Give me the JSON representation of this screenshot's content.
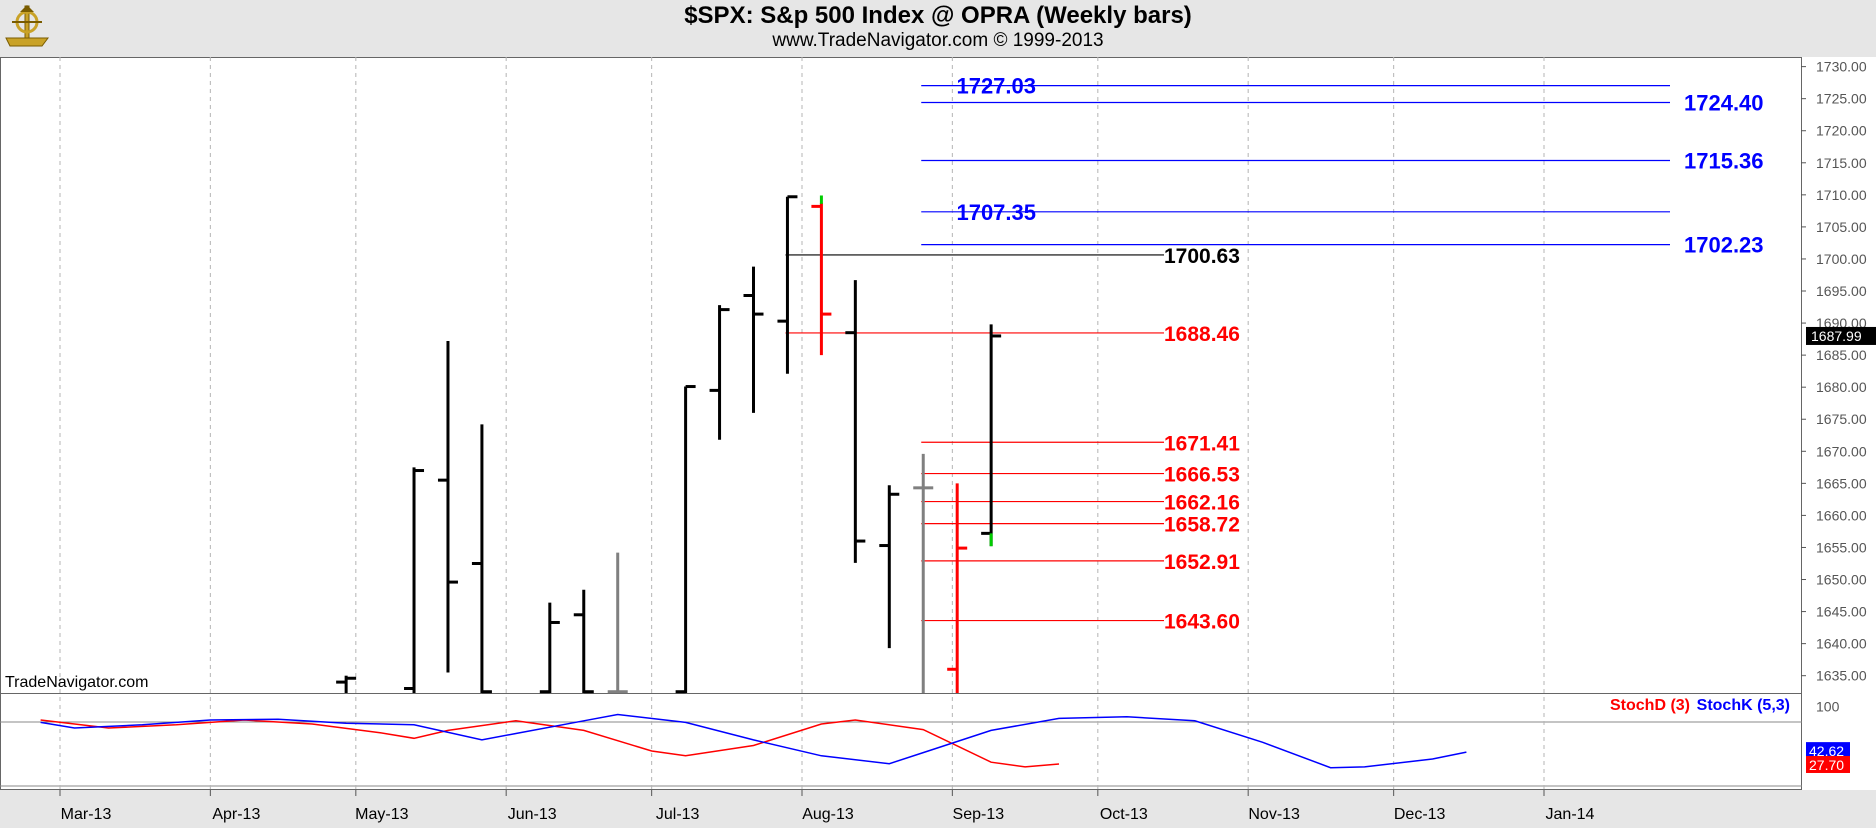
{
  "header": {
    "title": "$SPX:  S&p 500 Index @ OPRA  (Weekly bars)",
    "subtitle": "www.TradeNavigator.com © 1999-2013"
  },
  "watermark": "TradeNavigator.com",
  "colors": {
    "background": "#ffffff",
    "header_band": "#e6e6e6",
    "bar_black": "#000000",
    "bar_red": "#ff0000",
    "bar_gray": "#808080",
    "bar_green": "#00cc00",
    "level_blue": "#0000ff",
    "level_red": "#ff0000",
    "stoch_d": "#ff0000",
    "stoch_k": "#0000ff",
    "grid": "#b4b4b4"
  },
  "chart_data": [
    {
      "type": "ohlc",
      "title": "$SPX:  S&p 500 Index @ OPRA  (Weekly bars)",
      "x_tick_labels": [
        "Mar-13",
        "Apr-13",
        "May-13",
        "Jun-13",
        "Jul-13",
        "Aug-13",
        "Sep-13",
        "Oct-13",
        "Nov-13",
        "Dec-13",
        "Jan-14"
      ],
      "y_tick_labels": [
        "1730.00",
        "1725.00",
        "1720.00",
        "1715.00",
        "1710.00",
        "1705.00",
        "1700.00",
        "1695.00",
        "1690.00",
        "1685.00",
        "1680.00",
        "1675.00",
        "1670.00",
        "1665.00",
        "1660.00",
        "1655.00",
        "1650.00",
        "1645.00",
        "1640.00",
        "1635.00"
      ],
      "y_ticks": [
        1730,
        1725,
        1720,
        1715,
        1710,
        1705,
        1700,
        1695,
        1690,
        1685,
        1680,
        1675,
        1670,
        1665,
        1660,
        1655,
        1650,
        1645,
        1640,
        1635
      ],
      "ylim": [
        1632.3,
        1731.5
      ],
      "grid": true,
      "last_value_label": "1687.99",
      "bars": [
        {
          "date": "2013-04-29",
          "high": 1635.0,
          "low": 1632.3,
          "open": 1634.0,
          "close": 1634.6,
          "color": "black"
        },
        {
          "date": "2013-05-13",
          "high": 1667.5,
          "low": 1632.3,
          "open": 1633.0,
          "close": 1667.0,
          "color": "black"
        },
        {
          "date": "2013-05-20",
          "high": 1687.2,
          "low": 1635.5,
          "open": 1665.5,
          "close": 1649.6,
          "color": "black"
        },
        {
          "date": "2013-05-27",
          "high": 1674.2,
          "low": 1632.3,
          "open": 1652.5,
          "close": 1632.5,
          "color": "black"
        },
        {
          "date": "2013-06-10",
          "high": 1646.4,
          "low": 1632.3,
          "open": 1632.5,
          "close": 1643.3,
          "color": "black"
        },
        {
          "date": "2013-06-17",
          "high": 1648.4,
          "low": 1632.3,
          "open": 1644.5,
          "close": 1632.5,
          "color": "black"
        },
        {
          "date": "2013-06-24",
          "high": 1654.2,
          "low": 1632.3,
          "open": 1632.5,
          "close": 1632.5,
          "color": "gray"
        },
        {
          "date": "2013-07-08",
          "high": 1680.1,
          "low": 1632.3,
          "open": 1632.5,
          "close": 1680.1,
          "color": "black"
        },
        {
          "date": "2013-07-15",
          "high": 1692.8,
          "low": 1671.8,
          "open": 1679.5,
          "close": 1692.1,
          "color": "black"
        },
        {
          "date": "2013-07-22",
          "high": 1698.8,
          "low": 1676.0,
          "open": 1694.3,
          "close": 1691.4,
          "color": "black"
        },
        {
          "date": "2013-07-29",
          "high": 1709.7,
          "low": 1682.1,
          "open": 1690.3,
          "close": 1709.7,
          "color": "black"
        },
        {
          "date": "2013-08-05",
          "high": 1708.7,
          "low": 1685.0,
          "open": 1708.2,
          "close": 1691.4,
          "color": "red"
        },
        {
          "date": "2013-08-12",
          "high": 1696.7,
          "low": 1652.6,
          "open": 1688.5,
          "close": 1656.0,
          "color": "black"
        },
        {
          "date": "2013-08-19",
          "high": 1664.7,
          "low": 1639.3,
          "open": 1655.3,
          "close": 1663.3,
          "color": "black"
        },
        {
          "date": "2013-08-26",
          "high": 1669.6,
          "low": 1632.3,
          "open": 1664.3,
          "close": 1664.3,
          "color": "gray"
        },
        {
          "date": "2013-09-02",
          "high": 1665.0,
          "low": 1632.3,
          "open": 1636.0,
          "close": 1654.9,
          "color": "red"
        },
        {
          "date": "2013-09-09",
          "high": 1689.8,
          "low": 1655.2,
          "open": 1657.2,
          "close": 1687.99,
          "color": "black"
        }
      ],
      "high_wick_marks": [
        {
          "date": "2013-08-05",
          "low": 1708.6,
          "high": 1709.9,
          "color": "green"
        }
      ],
      "low_wick_marks": [
        {
          "date": "2013-09-09",
          "low": 1655.2,
          "high": 1657.2,
          "color": "green"
        }
      ],
      "levels": [
        {
          "value": 1727.03,
          "label": "1727.03",
          "color": "blue",
          "line_from": "2013-08-26",
          "label_side": "left"
        },
        {
          "value": 1724.4,
          "label": "1724.40",
          "color": "blue",
          "line_from": "2013-08-26",
          "label_side": "right"
        },
        {
          "value": 1715.36,
          "label": "1715.36",
          "color": "blue",
          "line_from": "2013-08-26",
          "label_side": "right"
        },
        {
          "value": 1707.35,
          "label": "1707.35",
          "color": "blue",
          "line_from": "2013-08-26",
          "label_side": "left"
        },
        {
          "value": 1702.23,
          "label": "1702.23",
          "color": "blue",
          "line_from": "2013-08-26",
          "label_side": "right"
        },
        {
          "value": 1700.63,
          "label": "1700.63",
          "color": "black",
          "line_from": "2013-07-29",
          "label_side": "middle"
        },
        {
          "value": 1688.46,
          "label": "1688.46",
          "color": "red",
          "line_from": "2013-07-29",
          "label_side": "middle"
        },
        {
          "value": 1671.41,
          "label": "1671.41",
          "color": "red",
          "line_from": "2013-08-26",
          "label_side": "middle"
        },
        {
          "value": 1666.53,
          "label": "1666.53",
          "color": "red",
          "line_from": "2013-08-26",
          "label_side": "middle"
        },
        {
          "value": 1662.16,
          "label": "1662.16",
          "color": "red",
          "line_from": "2013-08-26",
          "label_side": "middle"
        },
        {
          "value": 1658.72,
          "label": "1658.72",
          "color": "red",
          "line_from": "2013-08-26",
          "label_side": "middle"
        },
        {
          "value": 1652.91,
          "label": "1652.91",
          "color": "red",
          "line_from": "2013-08-26",
          "label_side": "middle"
        },
        {
          "value": 1643.6,
          "label": "1643.60",
          "color": "red",
          "line_from": "2013-08-26",
          "label_side": "middle"
        }
      ]
    },
    {
      "type": "line",
      "ylim": [
        0,
        117
      ],
      "y_tick_labels": [
        "100"
      ],
      "y_ticks": [
        100
      ],
      "reference_lines": [
        100,
        0
      ],
      "series": [
        {
          "name": "StochD (3)",
          "color": "#ff0000",
          "last_label": "27.70",
          "points": [
            [
              "2013-02-25",
              83
            ],
            [
              "2013-03-11",
              73
            ],
            [
              "2013-03-25",
              77
            ],
            [
              "2013-04-08",
              83
            ],
            [
              "2013-04-22",
              78
            ],
            [
              "2013-05-06",
              67
            ],
            [
              "2013-05-13",
              60
            ],
            [
              "2013-05-20",
              70
            ],
            [
              "2013-06-03",
              82
            ],
            [
              "2013-06-17",
              70
            ],
            [
              "2013-07-01",
              44
            ],
            [
              "2013-07-08",
              38
            ],
            [
              "2013-07-22",
              51
            ],
            [
              "2013-08-05",
              78
            ],
            [
              "2013-08-12",
              83
            ],
            [
              "2013-08-26",
              71
            ],
            [
              "2013-09-09",
              30
            ],
            [
              "2013-09-16",
              24
            ],
            [
              "2013-09-23",
              27.7
            ]
          ]
        },
        {
          "name": "StochK (5,3)",
          "color": "#0000ff",
          "last_label": "42.62",
          "points": [
            [
              "2013-02-25",
              80
            ],
            [
              "2013-03-04",
              73
            ],
            [
              "2013-03-18",
              77
            ],
            [
              "2013-04-01",
              83
            ],
            [
              "2013-04-15",
              84
            ],
            [
              "2013-04-29",
              79
            ],
            [
              "2013-05-13",
              77
            ],
            [
              "2013-05-27",
              58
            ],
            [
              "2013-06-03",
              66
            ],
            [
              "2013-06-17",
              82
            ],
            [
              "2013-06-24",
              90
            ],
            [
              "2013-07-08",
              80
            ],
            [
              "2013-07-22",
              58
            ],
            [
              "2013-08-05",
              38
            ],
            [
              "2013-08-19",
              28
            ],
            [
              "2013-08-26",
              42
            ],
            [
              "2013-09-09",
              70
            ],
            [
              "2013-09-23",
              85
            ],
            [
              "2013-10-07",
              87
            ],
            [
              "2013-10-21",
              82
            ],
            [
              "2013-11-04",
              55
            ],
            [
              "2013-11-18",
              23
            ],
            [
              "2013-11-25",
              24
            ],
            [
              "2013-12-09",
              34
            ],
            [
              "2013-12-16",
              42.62
            ]
          ]
        }
      ]
    }
  ]
}
